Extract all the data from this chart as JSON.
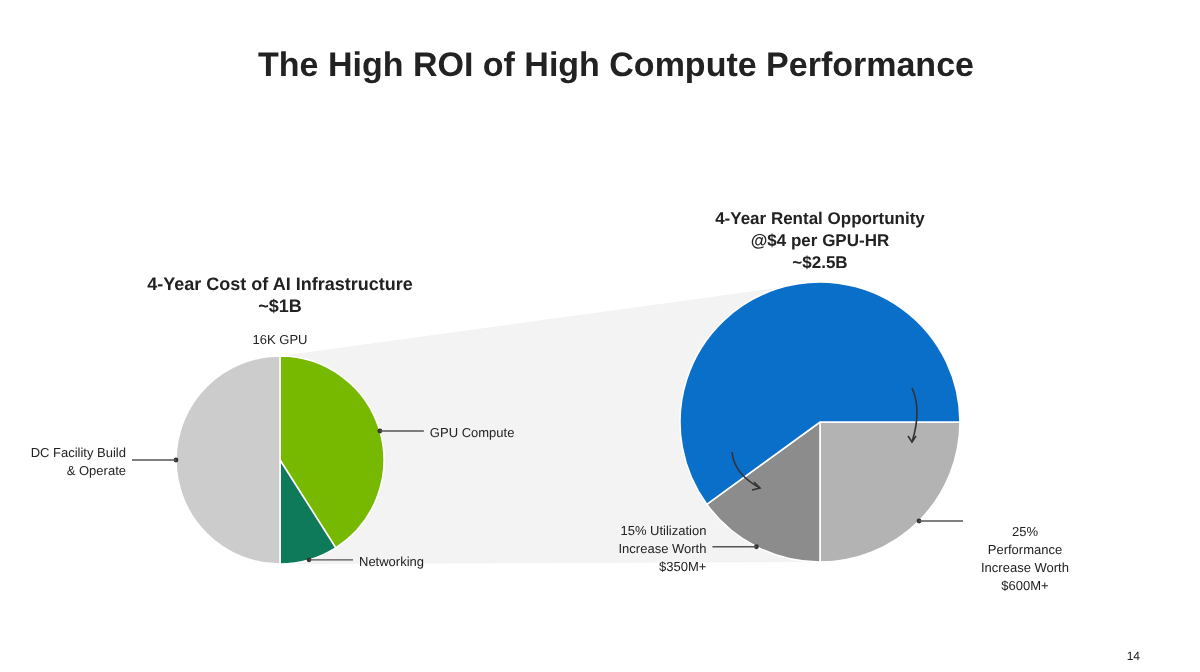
{
  "chart_data": [
    {
      "type": "pie",
      "title": "The High ROI of High Compute Performance",
      "subtitle": "4-Year Cost of AI Infrastructure\n~$1B",
      "annotations": [
        "16K GPU"
      ],
      "categories": [
        "GPU Compute",
        "Networking",
        "DC Facility Build\n& Operate"
      ],
      "values": [
        41,
        9,
        50
      ],
      "colors": [
        "#76b900",
        "#0e7a5a",
        "#cccccc"
      ]
    },
    {
      "type": "pie",
      "title": "4-Year Rental Opportunity\n@$4 per GPU-HR\n~$2.5B",
      "annotations": [
        "14"
      ],
      "categories": [
        "25%\nPerformance\nIncrease Worth\n$600M+",
        "15% Utilization\nIncrease Worth\n$350M+",
        null
      ],
      "values": [
        25,
        15,
        60
      ],
      "colors": [
        "#b3b3b3",
        "#8c8c8c",
        "#0a6fc9"
      ]
    }
  ]
}
